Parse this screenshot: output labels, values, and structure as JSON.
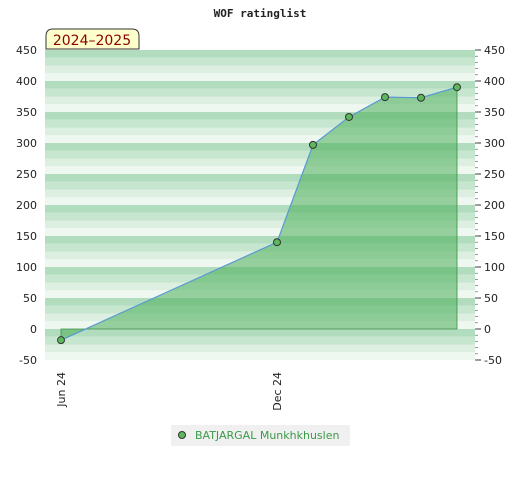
{
  "chart_data": {
    "type": "area",
    "title": "WOF ratinglist",
    "season_label": "2024–2025",
    "x_ticks": [
      "Jun 24",
      "Dec 24"
    ],
    "ylim": [
      -50,
      450
    ],
    "y_ticks": [
      -50,
      0,
      50,
      100,
      150,
      200,
      250,
      300,
      350,
      400,
      450
    ],
    "grid": true,
    "legend_position": "bottom",
    "series": [
      {
        "name": "BATJARGAL Munkhkhuslen",
        "x": [
          "2024-06",
          "2024-12",
          "2025-01",
          "2025-02",
          "2025-03",
          "2025-04",
          "2025-05"
        ],
        "values": [
          -18,
          140,
          297,
          342,
          374,
          373,
          390
        ]
      }
    ],
    "colors": {
      "line": "#5b9bd5",
      "area": "#4caf5a",
      "marker": "#5cb85c",
      "legend_text": "#3b9a4a",
      "season_bg": "#ffffcc",
      "season_text": "#8b0000"
    }
  }
}
